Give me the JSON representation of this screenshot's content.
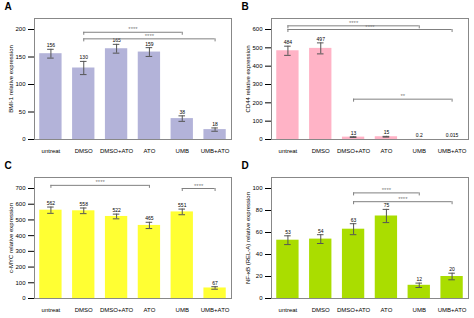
{
  "chart_data": [
    {
      "type": "bar",
      "title": "A",
      "categories": [
        "untreat",
        "DMSO",
        "DMSO+ATO",
        "ATO",
        "UMB",
        "UMB+ATO"
      ],
      "values": [
        156,
        130,
        165,
        159,
        38,
        18
      ],
      "errors": [
        8,
        12,
        8,
        8,
        5,
        3
      ],
      "ylabel": "BMI-1 relative expression",
      "ylim": [
        0,
        220
      ],
      "yticks": [
        0,
        50,
        100,
        150,
        200
      ],
      "color": "#b3b3d9",
      "data_labels": true,
      "annotations": [
        {
          "x1": "DMSO",
          "x2": "UMB",
          "y": 195,
          "label": "****"
        },
        {
          "x1": "DMSO",
          "x2": "UMB+ATO",
          "y": 183,
          "label": "****"
        }
      ]
    },
    {
      "type": "bar",
      "title": "B",
      "categories": [
        "untreat",
        "DMSO",
        "DMSO+ATO",
        "ATO",
        "UMB",
        "UMB+ATO"
      ],
      "values": [
        484,
        497,
        13,
        15,
        0.2,
        0.015
      ],
      "errors": [
        25,
        30,
        2,
        2,
        0.1,
        0.005
      ],
      "ylabel": "CD44 relative expression",
      "ylim": [
        0,
        660
      ],
      "yticks": [
        0,
        100,
        200,
        300,
        400,
        500,
        600
      ],
      "color": "#ffb3c6",
      "data_labels": true,
      "annotations": [
        {
          "x1": "untreat",
          "x2": "UMB",
          "y": 620,
          "label": "****"
        },
        {
          "x1": "untreat",
          "x2": "UMB+ATO",
          "y": 600,
          "label": "****"
        },
        {
          "x1": "DMSO+ATO",
          "x2": "UMB+ATO",
          "y": 220,
          "label": "**"
        }
      ]
    },
    {
      "type": "bar",
      "title": "C",
      "categories": [
        "untreat",
        "DMSO",
        "DMSO+ATO",
        "ATO",
        "UMB",
        "UMB+ATO"
      ],
      "values": [
        562,
        558,
        522,
        465,
        551,
        67
      ],
      "errors": [
        20,
        18,
        15,
        20,
        18,
        8
      ],
      "ylabel": "c-MYC relative expression",
      "ylim": [
        0,
        770
      ],
      "yticks": [
        0,
        100,
        200,
        300,
        400,
        500,
        600,
        700
      ],
      "color": "#ffff33",
      "data_labels": true,
      "annotations": [
        {
          "x1": "untreat",
          "x2": "ATO",
          "y": 720,
          "label": "****"
        },
        {
          "x1": "UMB",
          "x2": "UMB+ATO",
          "y": 700,
          "label": "****"
        }
      ]
    },
    {
      "type": "bar",
      "title": "D",
      "categories": [
        "untreat",
        "DMSO",
        "DMSO+ATO",
        "ATO",
        "UMB",
        "UMB+ATO"
      ],
      "values": [
        53,
        54,
        63,
        75,
        12,
        20
      ],
      "errors": [
        4,
        4,
        5,
        6,
        2,
        3
      ],
      "ylabel": "NF-κB (REL-A) relative expression",
      "ylim": [
        0,
        110
      ],
      "yticks": [
        0,
        20,
        40,
        60,
        80,
        100
      ],
      "color": "#aadd00",
      "data_labels": true,
      "annotations": [
        {
          "x1": "DMSO+ATO",
          "x2": "UMB",
          "y": 96,
          "label": "****"
        },
        {
          "x1": "DMSO+ATO",
          "x2": "UMB+ATO",
          "y": 88,
          "label": "****"
        }
      ]
    }
  ]
}
